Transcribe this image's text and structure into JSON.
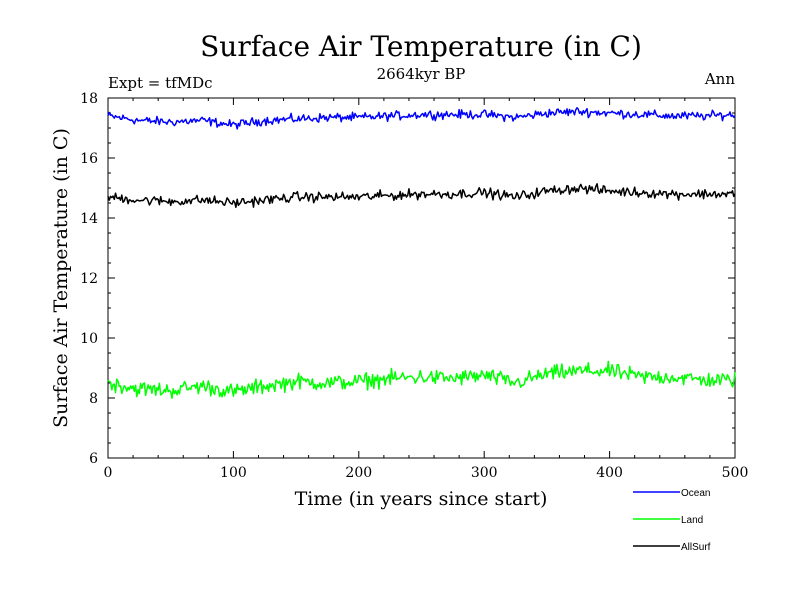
{
  "chart_data": {
    "type": "line",
    "title": "Surface Air Temperature (in C)",
    "subtitle": "2664kyr BP",
    "left_annotation": "Expt = tfMDc",
    "right_annotation": "Ann",
    "xlabel": "Time (in years since start)",
    "ylabel": "Surface Air Temperature (in C)",
    "xlim": [
      0,
      500
    ],
    "ylim": [
      6,
      18
    ],
    "xticks": [
      0,
      100,
      200,
      300,
      400,
      500
    ],
    "yticks": [
      6,
      8,
      10,
      12,
      14,
      16,
      18
    ],
    "grid": false,
    "legend_position": "bottom-right",
    "x": [
      0,
      25,
      50,
      75,
      100,
      125,
      150,
      175,
      200,
      225,
      250,
      275,
      300,
      325,
      350,
      375,
      400,
      425,
      450,
      475,
      500
    ],
    "series": [
      {
        "name": "Ocean",
        "color": "#0000ff",
        "values": [
          17.4,
          17.25,
          17.2,
          17.25,
          17.1,
          17.25,
          17.3,
          17.35,
          17.35,
          17.4,
          17.45,
          17.45,
          17.45,
          17.35,
          17.5,
          17.55,
          17.5,
          17.45,
          17.4,
          17.4,
          17.45
        ]
      },
      {
        "name": "Land",
        "color": "#00ff00",
        "values": [
          8.5,
          8.3,
          8.25,
          8.4,
          8.2,
          8.4,
          8.55,
          8.5,
          8.55,
          8.65,
          8.7,
          8.65,
          8.75,
          8.5,
          8.8,
          8.9,
          8.9,
          8.7,
          8.7,
          8.6,
          8.6
        ]
      },
      {
        "name": "AllSurf",
        "color": "#000000",
        "values": [
          14.7,
          14.6,
          14.55,
          14.6,
          14.5,
          14.6,
          14.7,
          14.7,
          14.7,
          14.75,
          14.8,
          14.8,
          14.85,
          14.7,
          14.9,
          15.0,
          14.9,
          14.85,
          14.8,
          14.8,
          14.8
        ]
      }
    ]
  }
}
